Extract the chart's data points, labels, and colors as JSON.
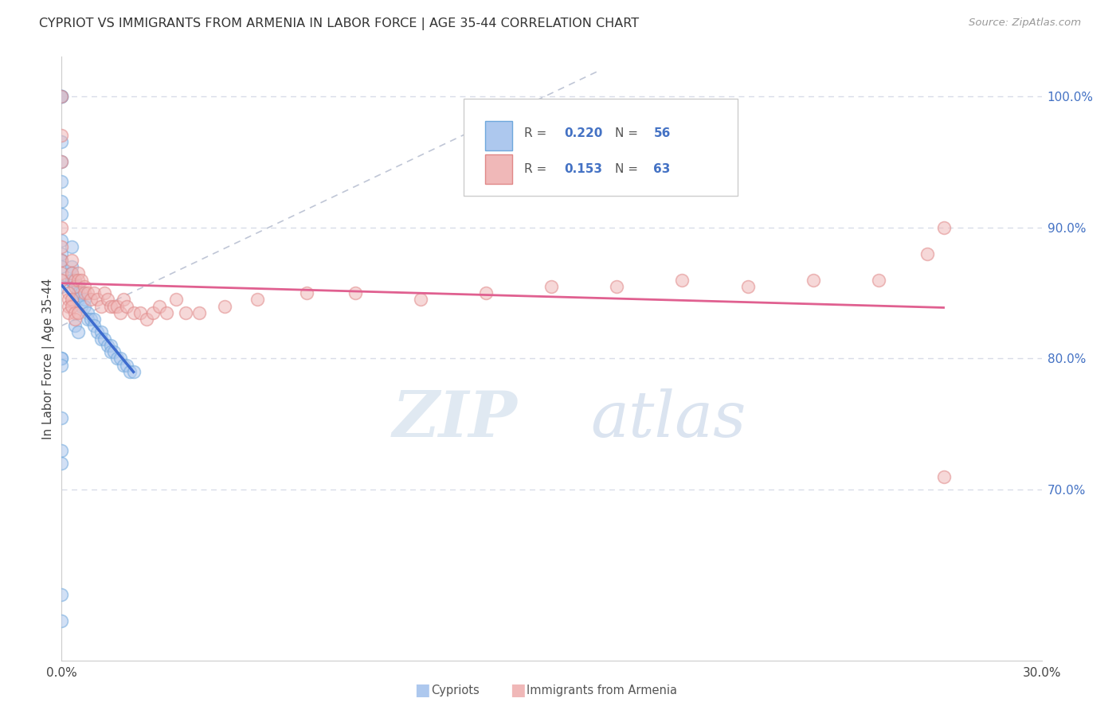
{
  "title": "CYPRIOT VS IMMIGRANTS FROM ARMENIA IN LABOR FORCE | AGE 35-44 CORRELATION CHART",
  "source": "Source: ZipAtlas.com",
  "ylabel": "In Labor Force | Age 35-44",
  "legend_blue_R": "0.220",
  "legend_blue_N": "56",
  "legend_pink_R": "0.153",
  "legend_pink_N": "63",
  "blue_color": "#6fa8dc",
  "pink_color": "#ea9999",
  "blue_line_color": "#3d6bce",
  "pink_line_color": "#e06090",
  "ref_line_color": "#b0b8cc",
  "background_color": "#ffffff",
  "grid_color": "#d8dce8",
  "xmin": 0.0,
  "xmax": 0.3,
  "ymin": 57.0,
  "ymax": 103.0,
  "blue_x": [
    0.0,
    0.0,
    0.0,
    0.0,
    0.0,
    0.0,
    0.0,
    0.0,
    0.0,
    0.0,
    0.0,
    0.0,
    0.0,
    0.0,
    0.003,
    0.003,
    0.003,
    0.003,
    0.004,
    0.004,
    0.005,
    0.005,
    0.005,
    0.006,
    0.006,
    0.007,
    0.007,
    0.008,
    0.008,
    0.009,
    0.01,
    0.01,
    0.011,
    0.012,
    0.012,
    0.013,
    0.014,
    0.015,
    0.015,
    0.016,
    0.017,
    0.018,
    0.019,
    0.02,
    0.021,
    0.022,
    0.004,
    0.005,
    0.0,
    0.0,
    0.0,
    0.0,
    0.0,
    0.0,
    0.0,
    0.0
  ],
  "blue_y": [
    100.0,
    100.0,
    100.0,
    96.5,
    95.0,
    93.5,
    92.0,
    91.0,
    89.0,
    88.0,
    87.5,
    87.0,
    86.0,
    85.5,
    88.5,
    87.0,
    86.5,
    86.0,
    86.0,
    85.5,
    85.5,
    85.0,
    84.5,
    85.0,
    84.0,
    84.5,
    84.0,
    83.5,
    83.0,
    83.0,
    83.0,
    82.5,
    82.0,
    82.0,
    81.5,
    81.5,
    81.0,
    81.0,
    80.5,
    80.5,
    80.0,
    80.0,
    79.5,
    79.5,
    79.0,
    79.0,
    82.5,
    82.0,
    80.0,
    80.0,
    79.5,
    75.5,
    73.0,
    72.0,
    62.0,
    60.0
  ],
  "pink_x": [
    0.0,
    0.0,
    0.0,
    0.0,
    0.0,
    0.0,
    0.0,
    0.0,
    0.003,
    0.003,
    0.004,
    0.004,
    0.005,
    0.005,
    0.006,
    0.007,
    0.007,
    0.008,
    0.009,
    0.01,
    0.011,
    0.012,
    0.013,
    0.014,
    0.015,
    0.016,
    0.017,
    0.018,
    0.019,
    0.02,
    0.022,
    0.024,
    0.026,
    0.028,
    0.03,
    0.032,
    0.035,
    0.038,
    0.042,
    0.05,
    0.06,
    0.075,
    0.09,
    0.11,
    0.13,
    0.15,
    0.17,
    0.19,
    0.21,
    0.23,
    0.25,
    0.265,
    0.27,
    0.002,
    0.002,
    0.002,
    0.002,
    0.003,
    0.003,
    0.004,
    0.004,
    0.005,
    0.27
  ],
  "pink_y": [
    100.0,
    97.0,
    95.0,
    90.0,
    88.5,
    87.5,
    86.5,
    86.0,
    87.5,
    86.5,
    86.0,
    85.5,
    86.5,
    86.0,
    86.0,
    85.5,
    85.0,
    85.0,
    84.5,
    85.0,
    84.5,
    84.0,
    85.0,
    84.5,
    84.0,
    84.0,
    84.0,
    83.5,
    84.5,
    84.0,
    83.5,
    83.5,
    83.0,
    83.5,
    84.0,
    83.5,
    84.5,
    83.5,
    83.5,
    84.0,
    84.5,
    85.0,
    85.0,
    84.5,
    85.0,
    85.5,
    85.5,
    86.0,
    85.5,
    86.0,
    86.0,
    88.0,
    90.0,
    85.0,
    84.5,
    84.0,
    83.5,
    84.5,
    84.0,
    83.5,
    83.0,
    83.5,
    71.0
  ]
}
